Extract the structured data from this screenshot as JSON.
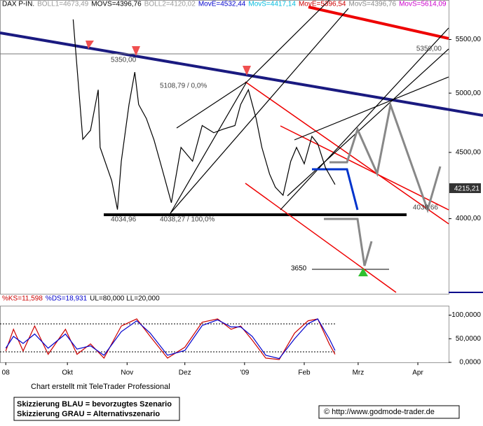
{
  "chart_data": [
    {
      "type": "line",
      "log_y": true,
      "header": [
        {
          "text": "DAX P-IN.",
          "color": "#000000"
        },
        {
          "text": "BOLL1=4673,49",
          "color": "#999999"
        },
        {
          "text": "MOVS=4396,76",
          "color": "#000000"
        },
        {
          "text": "BOLL2=4120,02",
          "color": "#999999"
        },
        {
          "text": "MovE=4532,44",
          "color": "#0000cc"
        },
        {
          "text": "MovS=4417,14",
          "color": "#00bbdd"
        },
        {
          "text": "MovE=5396,54",
          "color": "#cc0000"
        },
        {
          "text": "MovS=4396,76",
          "color": "#888888"
        },
        {
          "text": "MovS=5614,09",
          "color": "#cc00cc"
        }
      ],
      "annotations": [
        "5350,00",
        "5350,00",
        "5108,79 / 0,0%",
        "4038,27 / 100,0%",
        "4034,96",
        "4038,66",
        "3650",
        "4215,21"
      ],
      "x": [
        33,
        38,
        42,
        46,
        47,
        53,
        56,
        58,
        62,
        65,
        67,
        71,
        75,
        79,
        84,
        89,
        95,
        100,
        106,
        111,
        117,
        120,
        124,
        128,
        131,
        135,
        138,
        142,
        146,
        149,
        153,
        157,
        160,
        164,
        169
      ],
      "values": [
        5700,
        4606,
        4680,
        5030,
        4540,
        4280,
        4065,
        4430,
        4900,
        5190,
        4900,
        4780,
        4600,
        4380,
        4115,
        4540,
        4430,
        4720,
        4660,
        4690,
        4720,
        4900,
        5030,
        4780,
        4540,
        4330,
        4230,
        4170,
        4430,
        4540,
        4410,
        4630,
        4570,
        4380,
        4250
      ],
      "color": "#000000",
      "xlim": [
        -5,
        228
      ],
      "ylim": [
        3500,
        5900
      ],
      "yticks": [
        {
          "value": 5500,
          "label": "5500,00"
        },
        {
          "value": 5000,
          "label": "5000,00"
        },
        {
          "value": 4500,
          "label": "4500,00"
        },
        {
          "value": 4000,
          "label": "4000,00"
        }
      ]
    },
    {
      "type": "line",
      "header": [
        {
          "text": "%KS=11,598",
          "color": "#cc0000"
        },
        {
          "text": "%DS=18,931",
          "color": "#0000cc"
        },
        {
          "text": "UL=80,000 LL=20,000",
          "color": "#000000"
        }
      ],
      "x": [
        -2,
        2,
        7,
        13,
        20,
        29,
        35,
        42,
        49,
        58,
        66,
        73,
        82,
        91,
        100,
        108,
        115,
        120,
        126,
        133,
        140,
        148,
        155,
        160,
        166,
        169
      ],
      "series": [
        {
          "name": "%KS",
          "color": "#cc0000",
          "values": [
            24,
            70,
            24,
            77,
            17,
            70,
            17,
            39,
            9,
            77,
            92,
            55,
            9,
            32,
            85,
            92,
            70,
            77,
            47,
            9,
            6,
            62,
            88,
            92,
            39,
            17
          ]
        },
        {
          "name": "%DS",
          "color": "#0000cc",
          "values": [
            30,
            55,
            40,
            60,
            30,
            60,
            28,
            35,
            15,
            65,
            88,
            62,
            15,
            25,
            78,
            90,
            75,
            75,
            55,
            15,
            8,
            50,
            82,
            92,
            50,
            25
          ]
        }
      ],
      "xlim": [
        -5,
        228
      ],
      "ylim": [
        0,
        120
      ],
      "yticks": [
        {
          "value": 100,
          "label": "100,0000"
        },
        {
          "value": 50,
          "label": "50,0000"
        },
        {
          "value": 0,
          "label": "0,0000"
        }
      ],
      "xticks": [
        {
          "value": -2,
          "label": "08"
        },
        {
          "value": 30,
          "label": "Okt"
        },
        {
          "value": 61,
          "label": "Nov"
        },
        {
          "value": 91,
          "label": "Dez"
        },
        {
          "value": 122,
          "label": "'09"
        },
        {
          "value": 153,
          "label": "Feb"
        },
        {
          "value": 181,
          "label": "Mrz"
        },
        {
          "value": 212,
          "label": "Apr"
        }
      ]
    }
  ],
  "credit": "Chart erstellt mit TeleTrader Professional",
  "legend_box": [
    "Skizzierung BLAU = bevorzugtes Szenario",
    "Skizzierung GRAU = Alternativszenario"
  ],
  "copyright": "© http://www.godmode-trader.de"
}
